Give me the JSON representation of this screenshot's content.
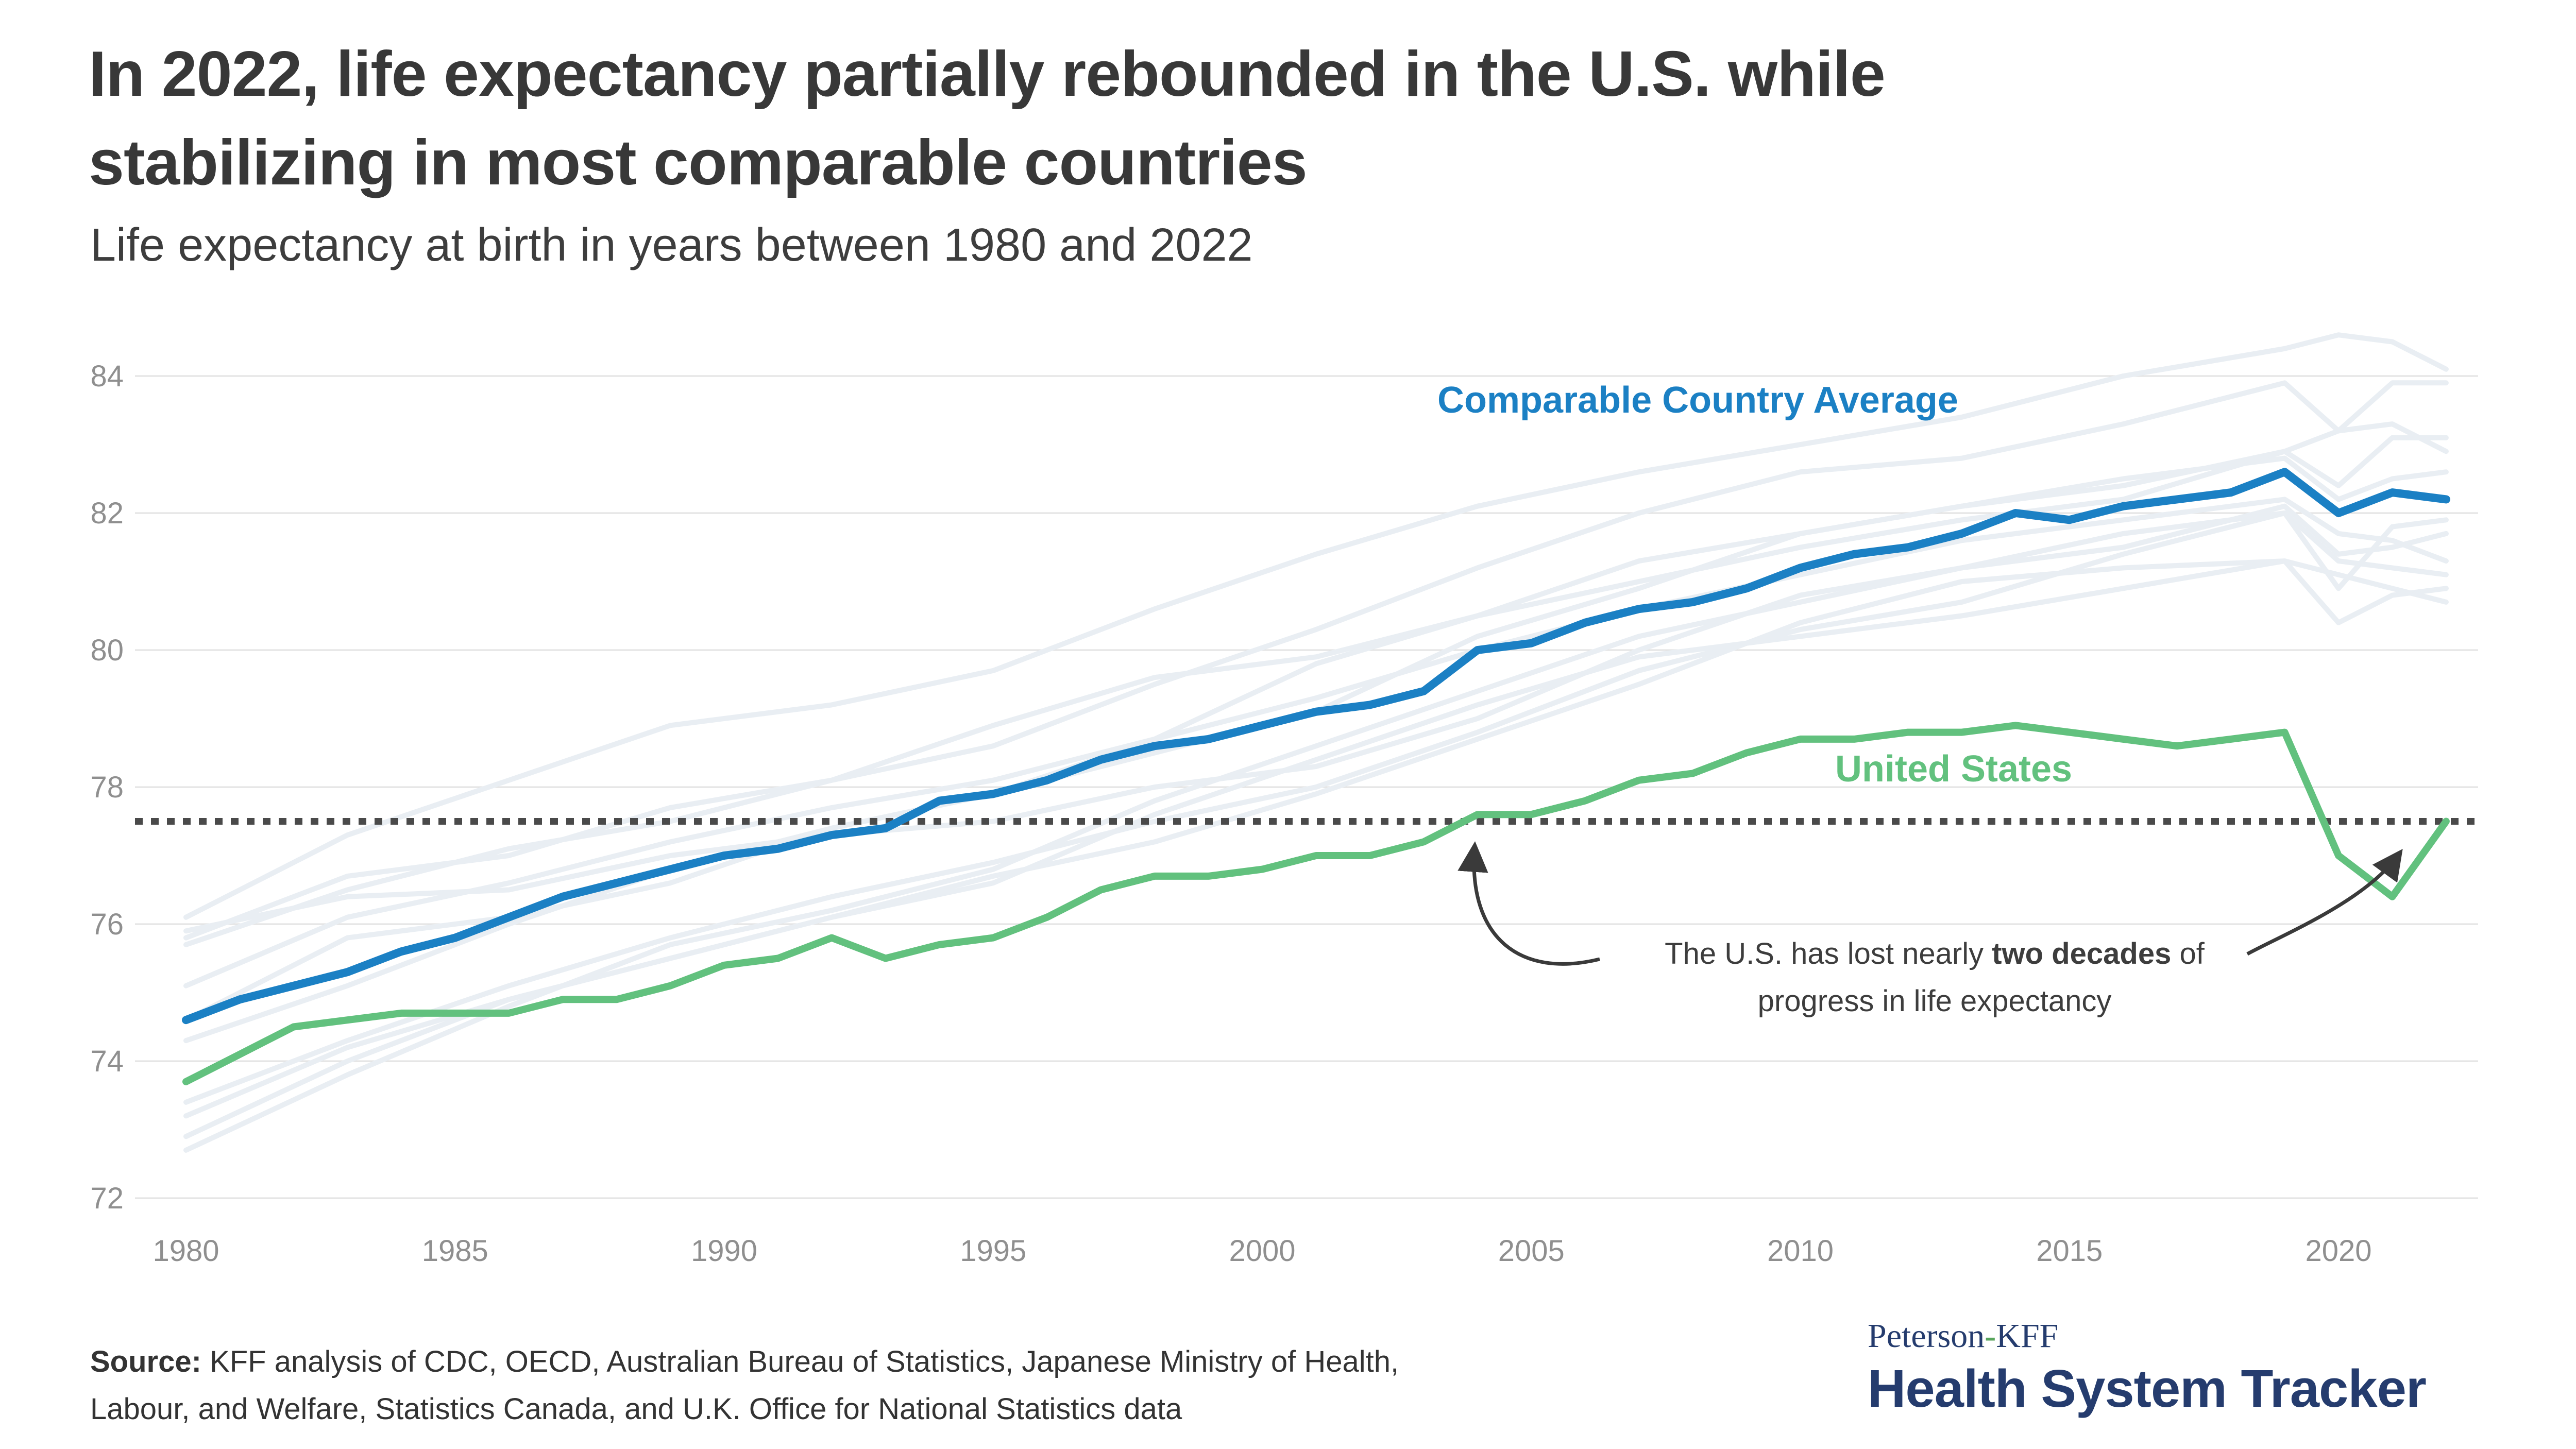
{
  "header": {
    "title_line1": "In 2022, life expectancy partially rebounded in the U.S. while",
    "title_line2": "stabilizing in most comparable countries",
    "subtitle": "Life expectancy at birth in years between 1980 and 2022"
  },
  "chart_data": {
    "type": "line",
    "x": [
      1980,
      1981,
      1982,
      1983,
      1984,
      1985,
      1986,
      1987,
      1988,
      1989,
      1990,
      1991,
      1992,
      1993,
      1994,
      1995,
      1996,
      1997,
      1998,
      1999,
      2000,
      2001,
      2002,
      2003,
      2004,
      2005,
      2006,
      2007,
      2008,
      2009,
      2010,
      2011,
      2012,
      2013,
      2014,
      2015,
      2016,
      2017,
      2018,
      2019,
      2020,
      2021,
      2022
    ],
    "series": [
      {
        "name": "Comparable Country Average",
        "color": "#1b80c4",
        "values": [
          74.6,
          74.9,
          75.1,
          75.3,
          75.6,
          75.8,
          76.1,
          76.4,
          76.6,
          76.8,
          77.0,
          77.1,
          77.3,
          77.4,
          77.8,
          77.9,
          78.1,
          78.4,
          78.6,
          78.7,
          78.9,
          79.1,
          79.2,
          79.4,
          80.0,
          80.1,
          80.4,
          80.6,
          80.7,
          80.9,
          81.2,
          81.4,
          81.5,
          81.7,
          82.0,
          81.9,
          82.1,
          82.2,
          82.3,
          82.6,
          82.0,
          82.3,
          82.2
        ]
      },
      {
        "name": "United States",
        "color": "#62c17e",
        "values": [
          73.7,
          74.1,
          74.5,
          74.6,
          74.7,
          74.7,
          74.7,
          74.9,
          74.9,
          75.1,
          75.4,
          75.5,
          75.8,
          75.5,
          75.7,
          75.8,
          76.1,
          76.5,
          76.7,
          76.7,
          76.8,
          77.0,
          77.0,
          77.2,
          77.6,
          77.6,
          77.8,
          78.1,
          78.2,
          78.5,
          78.7,
          78.7,
          78.8,
          78.8,
          78.9,
          78.8,
          78.7,
          78.6,
          78.7,
          78.8,
          77.0,
          76.4,
          77.5
        ]
      }
    ],
    "background_series": {
      "description": "unlabeled individual comparable-country lines (approximate)",
      "color": "#e9eef3",
      "x_sample": [
        1980,
        1983,
        1986,
        1989,
        1992,
        1995,
        1998,
        2001,
        2004,
        2007,
        2010,
        2013,
        2016,
        2019,
        2020,
        2021,
        2022
      ],
      "lines": [
        [
          76.1,
          77.3,
          78.1,
          78.9,
          79.2,
          79.7,
          80.6,
          81.4,
          82.1,
          82.6,
          83.0,
          83.4,
          84.0,
          84.4,
          84.6,
          84.5,
          84.1
        ],
        [
          75.7,
          76.5,
          77.1,
          77.5,
          78.1,
          78.6,
          79.5,
          80.3,
          81.2,
          82.0,
          82.6,
          82.8,
          83.3,
          83.9,
          83.2,
          83.9,
          83.9
        ],
        [
          75.8,
          76.7,
          77.0,
          77.7,
          78.1,
          78.9,
          79.6,
          79.9,
          80.5,
          81.0,
          81.5,
          81.9,
          82.2,
          82.9,
          82.4,
          83.1,
          83.1
        ],
        [
          74.6,
          75.8,
          76.1,
          76.6,
          77.4,
          77.9,
          78.7,
          79.8,
          80.5,
          81.3,
          81.7,
          82.1,
          82.4,
          82.9,
          83.2,
          83.3,
          82.9
        ],
        [
          74.3,
          75.1,
          76.0,
          76.8,
          77.4,
          77.9,
          78.5,
          79.1,
          80.2,
          80.9,
          81.7,
          82.1,
          82.5,
          82.8,
          82.2,
          82.5,
          82.6
        ],
        [
          75.1,
          76.1,
          76.6,
          77.2,
          77.7,
          78.1,
          78.7,
          79.3,
          80.0,
          80.6,
          81.1,
          81.6,
          81.9,
          82.2,
          81.7,
          81.6,
          81.3
        ],
        [
          75.9,
          76.4,
          76.5,
          77.0,
          77.3,
          77.5,
          78.0,
          78.3,
          79.0,
          80.0,
          80.8,
          81.2,
          81.5,
          82.1,
          81.4,
          81.5,
          81.7
        ],
        [
          73.4,
          74.3,
          75.1,
          75.8,
          76.4,
          76.9,
          77.5,
          78.0,
          78.8,
          79.7,
          80.3,
          80.7,
          81.4,
          82.0,
          80.9,
          81.8,
          81.9
        ],
        [
          72.7,
          73.8,
          74.8,
          75.7,
          76.2,
          76.8,
          77.8,
          78.6,
          79.4,
          80.2,
          80.7,
          81.2,
          81.7,
          82.0,
          81.3,
          81.2,
          81.1
        ],
        [
          72.9,
          74.0,
          74.9,
          75.5,
          76.1,
          76.6,
          77.6,
          78.4,
          79.2,
          79.9,
          80.2,
          80.5,
          80.9,
          81.3,
          81.1,
          80.9,
          80.7
        ],
        [
          73.2,
          74.2,
          74.9,
          75.5,
          76.1,
          76.7,
          77.2,
          77.9,
          78.7,
          79.5,
          80.4,
          81.0,
          81.2,
          81.3,
          80.4,
          80.8,
          80.9
        ]
      ]
    },
    "reference_line": {
      "value": 77.5,
      "style": "dotted",
      "color": "#4a4a4a"
    },
    "yticks": [
      72,
      74,
      76,
      78,
      80,
      82,
      84
    ],
    "xticks": [
      1980,
      1985,
      1990,
      1995,
      2000,
      2005,
      2010,
      2015,
      2020
    ],
    "ylim": [
      72,
      84.8
    ],
    "xlim": [
      1980,
      2022
    ],
    "grid": "horizontal",
    "axis_label_color": "#8f8f8f",
    "gridline_color": "#e3e3e3",
    "annotation": {
      "line1_pre": "The U.S. has lost nearly ",
      "line1_bold": "two decades",
      "line1_post": " of",
      "line2": "progress in life expectancy"
    }
  },
  "footer": {
    "source_label": "Source:",
    "source_line1": " KFF analysis of CDC, OECD, Australian Bureau of Statistics, Japanese Ministry of Health,",
    "source_line2": "Labour, and Welfare, Statistics Canada, and U.K. Office for National Statistics data",
    "logo_peterson": "Peterson",
    "logo_hyphen": "-",
    "logo_kff": "KFF",
    "logo_main": "Health System Tracker"
  }
}
